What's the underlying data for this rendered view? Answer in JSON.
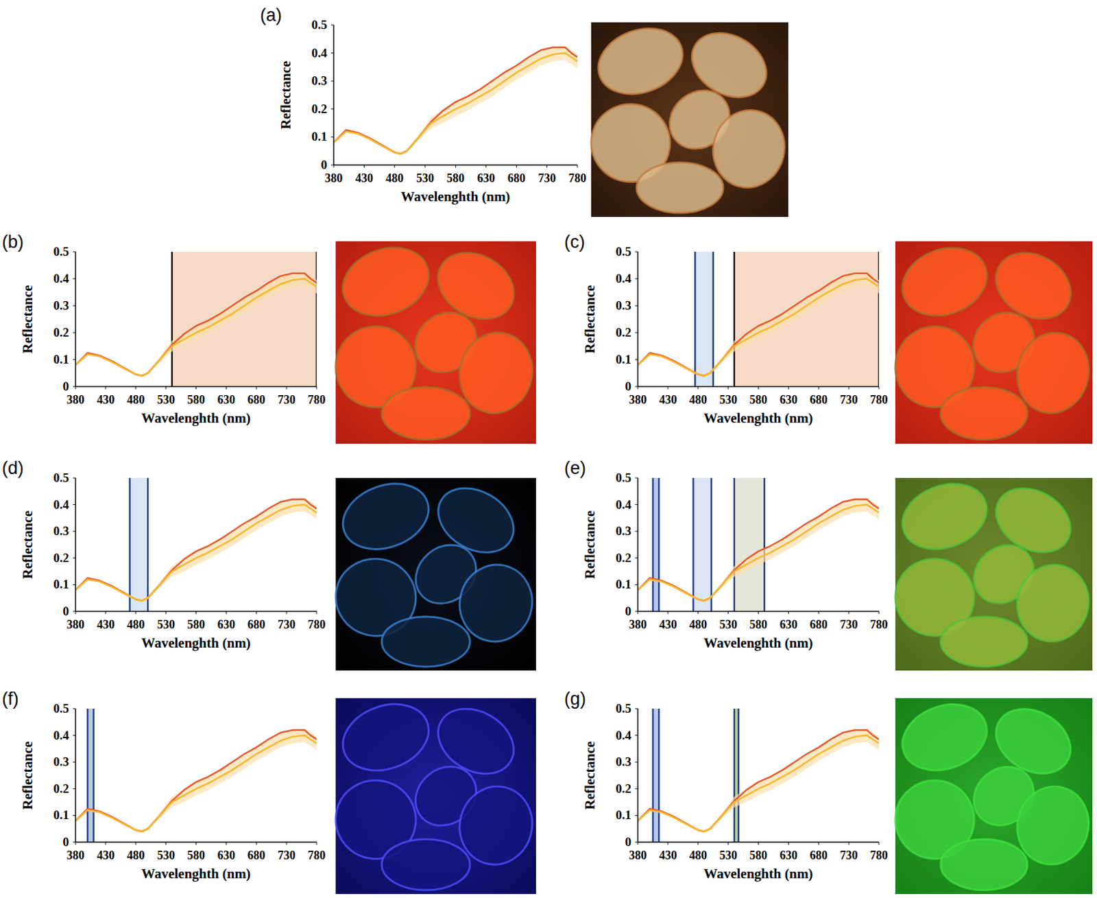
{
  "chart_data": [
    {
      "type": "line",
      "title": "(a)",
      "x_label": "Wavelenghth (nm)",
      "y_label": "Reflectance",
      "x": [
        380,
        400,
        420,
        440,
        460,
        480,
        490,
        500,
        520,
        540,
        560,
        580,
        600,
        620,
        640,
        660,
        680,
        700,
        720,
        740,
        760,
        770,
        780
      ],
      "series": [
        {
          "color": "#e8562a",
          "values": [
            0.08,
            0.125,
            0.115,
            0.095,
            0.07,
            0.045,
            0.04,
            0.05,
            0.1,
            0.155,
            0.195,
            0.225,
            0.245,
            0.27,
            0.3,
            0.33,
            0.355,
            0.385,
            0.41,
            0.42,
            0.42,
            0.4,
            0.385
          ]
        },
        {
          "color": "#f7b52c",
          "values": [
            0.08,
            0.12,
            0.112,
            0.092,
            0.068,
            0.045,
            0.04,
            0.05,
            0.1,
            0.15,
            0.175,
            0.2,
            0.22,
            0.245,
            0.27,
            0.3,
            0.33,
            0.355,
            0.38,
            0.395,
            0.4,
            0.385,
            0.37
          ],
          "error": [
            0.005,
            0.005,
            0.005,
            0.005,
            0.005,
            0.005,
            0.005,
            0.005,
            0.01,
            0.02,
            0.025,
            0.025,
            0.025,
            0.025,
            0.025,
            0.025,
            0.025,
            0.025,
            0.025,
            0.025,
            0.025,
            0.025,
            0.025
          ]
        }
      ],
      "bands": [],
      "xlim": [
        380,
        780
      ],
      "ylim": [
        0,
        0.5
      ],
      "xticks": [
        380,
        430,
        480,
        530,
        580,
        630,
        680,
        730,
        780
      ],
      "yticks": [
        0,
        0.1,
        0.2,
        0.3,
        0.4,
        0.5
      ]
    },
    {
      "type": "line",
      "title": "(b)",
      "x_label": "Wavelenghth (nm)",
      "y_label": "Reflectance",
      "x": [
        380,
        400,
        420,
        440,
        460,
        480,
        490,
        500,
        520,
        540,
        560,
        580,
        600,
        620,
        640,
        660,
        680,
        700,
        720,
        740,
        760,
        770,
        780
      ],
      "series": [
        {
          "color": "#e8562a",
          "values": [
            0.08,
            0.125,
            0.115,
            0.095,
            0.07,
            0.045,
            0.04,
            0.05,
            0.1,
            0.155,
            0.195,
            0.225,
            0.245,
            0.27,
            0.3,
            0.33,
            0.355,
            0.385,
            0.41,
            0.42,
            0.42,
            0.4,
            0.385
          ]
        },
        {
          "color": "#f7b52c",
          "values": [
            0.08,
            0.12,
            0.112,
            0.092,
            0.068,
            0.045,
            0.04,
            0.05,
            0.1,
            0.15,
            0.175,
            0.2,
            0.22,
            0.245,
            0.27,
            0.3,
            0.33,
            0.355,
            0.38,
            0.395,
            0.4,
            0.385,
            0.37
          ],
          "error": [
            0.005,
            0.005,
            0.005,
            0.005,
            0.005,
            0.005,
            0.005,
            0.005,
            0.01,
            0.02,
            0.025,
            0.025,
            0.025,
            0.025,
            0.025,
            0.025,
            0.025,
            0.025,
            0.025,
            0.025,
            0.025,
            0.025,
            0.025
          ]
        }
      ],
      "bands": [
        {
          "start": 540,
          "end": 780,
          "color": "#f3cdb4"
        }
      ],
      "xlim": [
        380,
        780
      ],
      "ylim": [
        0,
        0.5
      ],
      "xticks": [
        380,
        430,
        480,
        530,
        580,
        630,
        680,
        730,
        780
      ],
      "yticks": [
        0,
        0.1,
        0.2,
        0.3,
        0.4,
        0.5
      ]
    },
    {
      "type": "line",
      "title": "(c)",
      "x_label": "Wavelenghth (nm)",
      "y_label": "Reflectance",
      "x": [
        380,
        400,
        420,
        440,
        460,
        480,
        490,
        500,
        520,
        540,
        560,
        580,
        600,
        620,
        640,
        660,
        680,
        700,
        720,
        740,
        760,
        770,
        780
      ],
      "series": [
        {
          "color": "#e8562a",
          "values": [
            0.08,
            0.125,
            0.115,
            0.095,
            0.07,
            0.045,
            0.04,
            0.05,
            0.1,
            0.155,
            0.195,
            0.225,
            0.245,
            0.27,
            0.3,
            0.33,
            0.355,
            0.385,
            0.41,
            0.42,
            0.42,
            0.4,
            0.385
          ]
        },
        {
          "color": "#f7b52c",
          "values": [
            0.08,
            0.12,
            0.112,
            0.092,
            0.068,
            0.045,
            0.04,
            0.05,
            0.1,
            0.15,
            0.175,
            0.2,
            0.22,
            0.245,
            0.27,
            0.3,
            0.33,
            0.355,
            0.38,
            0.395,
            0.4,
            0.385,
            0.37
          ],
          "error": [
            0.005,
            0.005,
            0.005,
            0.005,
            0.005,
            0.005,
            0.005,
            0.005,
            0.01,
            0.02,
            0.025,
            0.025,
            0.025,
            0.025,
            0.025,
            0.025,
            0.025,
            0.025,
            0.025,
            0.025,
            0.025,
            0.025,
            0.025
          ]
        }
      ],
      "bands": [
        {
          "start": 475,
          "end": 505,
          "color": "#cfdcef"
        },
        {
          "start": 540,
          "end": 780,
          "color": "#f3cdb4"
        }
      ],
      "xlim": [
        380,
        780
      ],
      "ylim": [
        0,
        0.5
      ],
      "xticks": [
        380,
        430,
        480,
        530,
        580,
        630,
        680,
        730,
        780
      ],
      "yticks": [
        0,
        0.1,
        0.2,
        0.3,
        0.4,
        0.5
      ]
    },
    {
      "type": "line",
      "title": "(d)",
      "x_label": "Wavelenghth (nm)",
      "y_label": "Reflectance",
      "x": [
        380,
        400,
        420,
        440,
        460,
        480,
        490,
        500,
        520,
        540,
        560,
        580,
        600,
        620,
        640,
        660,
        680,
        700,
        720,
        740,
        760,
        770,
        780
      ],
      "series": [
        {
          "color": "#e8562a",
          "values": [
            0.08,
            0.125,
            0.115,
            0.095,
            0.07,
            0.045,
            0.04,
            0.05,
            0.1,
            0.155,
            0.195,
            0.225,
            0.245,
            0.27,
            0.3,
            0.33,
            0.355,
            0.385,
            0.41,
            0.42,
            0.42,
            0.4,
            0.385
          ]
        },
        {
          "color": "#f7b52c",
          "values": [
            0.08,
            0.12,
            0.112,
            0.092,
            0.068,
            0.045,
            0.04,
            0.05,
            0.1,
            0.15,
            0.175,
            0.2,
            0.22,
            0.245,
            0.27,
            0.3,
            0.33,
            0.355,
            0.38,
            0.395,
            0.4,
            0.385,
            0.37
          ],
          "error": [
            0.005,
            0.005,
            0.005,
            0.005,
            0.005,
            0.005,
            0.005,
            0.005,
            0.01,
            0.02,
            0.025,
            0.025,
            0.025,
            0.025,
            0.025,
            0.025,
            0.025,
            0.025,
            0.025,
            0.025,
            0.025,
            0.025,
            0.025
          ]
        }
      ],
      "bands": [
        {
          "start": 470,
          "end": 500,
          "color": "#cfdcef"
        }
      ],
      "xlim": [
        380,
        780
      ],
      "ylim": [
        0,
        0.5
      ],
      "xticks": [
        380,
        430,
        480,
        530,
        580,
        630,
        680,
        730,
        780
      ],
      "yticks": [
        0,
        0.1,
        0.2,
        0.3,
        0.4,
        0.5
      ]
    },
    {
      "type": "line",
      "title": "(e)",
      "x_label": "Wavelenghth (nm)",
      "y_label": "Reflectance",
      "x": [
        380,
        400,
        420,
        440,
        460,
        480,
        490,
        500,
        520,
        540,
        560,
        580,
        600,
        620,
        640,
        660,
        680,
        700,
        720,
        740,
        760,
        770,
        780
      ],
      "series": [
        {
          "color": "#e8562a",
          "values": [
            0.08,
            0.125,
            0.115,
            0.095,
            0.07,
            0.045,
            0.04,
            0.05,
            0.1,
            0.155,
            0.195,
            0.225,
            0.245,
            0.27,
            0.3,
            0.33,
            0.355,
            0.385,
            0.41,
            0.42,
            0.42,
            0.4,
            0.385
          ]
        },
        {
          "color": "#f7b52c",
          "values": [
            0.08,
            0.12,
            0.112,
            0.092,
            0.068,
            0.045,
            0.04,
            0.05,
            0.1,
            0.15,
            0.175,
            0.2,
            0.22,
            0.245,
            0.27,
            0.3,
            0.33,
            0.355,
            0.38,
            0.395,
            0.4,
            0.385,
            0.37
          ],
          "error": [
            0.005,
            0.005,
            0.005,
            0.005,
            0.005,
            0.005,
            0.005,
            0.005,
            0.01,
            0.02,
            0.025,
            0.025,
            0.025,
            0.025,
            0.025,
            0.025,
            0.025,
            0.025,
            0.025,
            0.025,
            0.025,
            0.025,
            0.025
          ]
        }
      ],
      "bands": [
        {
          "start": 405,
          "end": 415,
          "color": "#9fb8e0"
        },
        {
          "start": 472,
          "end": 502,
          "color": "#cfdcef"
        },
        {
          "start": 540,
          "end": 590,
          "color": "#d9dccb"
        }
      ],
      "xlim": [
        380,
        780
      ],
      "ylim": [
        0,
        0.5
      ],
      "xticks": [
        380,
        430,
        480,
        530,
        580,
        630,
        680,
        730,
        780
      ],
      "yticks": [
        0,
        0.1,
        0.2,
        0.3,
        0.4,
        0.5
      ]
    },
    {
      "type": "line",
      "title": "(f)",
      "x_label": "Wavelenghth (nm)",
      "y_label": "Reflectance",
      "x": [
        380,
        400,
        420,
        440,
        460,
        480,
        490,
        500,
        520,
        540,
        560,
        580,
        600,
        620,
        640,
        660,
        680,
        700,
        720,
        740,
        760,
        770,
        780
      ],
      "series": [
        {
          "color": "#e8562a",
          "values": [
            0.08,
            0.125,
            0.115,
            0.095,
            0.07,
            0.045,
            0.04,
            0.05,
            0.1,
            0.155,
            0.195,
            0.225,
            0.245,
            0.27,
            0.3,
            0.33,
            0.355,
            0.385,
            0.41,
            0.42,
            0.42,
            0.4,
            0.385
          ]
        },
        {
          "color": "#f7b52c",
          "values": [
            0.08,
            0.12,
            0.112,
            0.092,
            0.068,
            0.045,
            0.04,
            0.05,
            0.1,
            0.15,
            0.175,
            0.2,
            0.22,
            0.245,
            0.27,
            0.3,
            0.33,
            0.355,
            0.38,
            0.395,
            0.4,
            0.385,
            0.37
          ],
          "error": [
            0.005,
            0.005,
            0.005,
            0.005,
            0.005,
            0.005,
            0.005,
            0.005,
            0.01,
            0.02,
            0.025,
            0.025,
            0.025,
            0.025,
            0.025,
            0.025,
            0.025,
            0.025,
            0.025,
            0.025,
            0.025,
            0.025,
            0.025
          ]
        }
      ],
      "bands": [
        {
          "start": 400,
          "end": 410,
          "color": "#9fb8e0"
        }
      ],
      "xlim": [
        380,
        780
      ],
      "ylim": [
        0,
        0.5
      ],
      "xticks": [
        380,
        430,
        480,
        530,
        580,
        630,
        680,
        730,
        780
      ],
      "yticks": [
        0,
        0.1,
        0.2,
        0.3,
        0.4,
        0.5
      ]
    },
    {
      "type": "line",
      "title": "(g)",
      "x_label": "Wavelenghth (nm)",
      "y_label": "Reflectance",
      "x": [
        380,
        400,
        420,
        440,
        460,
        480,
        490,
        500,
        520,
        540,
        560,
        580,
        600,
        620,
        640,
        660,
        680,
        700,
        720,
        740,
        760,
        770,
        780
      ],
      "series": [
        {
          "color": "#e8562a",
          "values": [
            0.08,
            0.125,
            0.115,
            0.095,
            0.07,
            0.045,
            0.04,
            0.05,
            0.1,
            0.155,
            0.195,
            0.225,
            0.245,
            0.27,
            0.3,
            0.33,
            0.355,
            0.385,
            0.41,
            0.42,
            0.42,
            0.4,
            0.385
          ]
        },
        {
          "color": "#f7b52c",
          "values": [
            0.08,
            0.12,
            0.112,
            0.092,
            0.068,
            0.045,
            0.04,
            0.05,
            0.1,
            0.15,
            0.175,
            0.2,
            0.22,
            0.245,
            0.27,
            0.3,
            0.33,
            0.355,
            0.38,
            0.395,
            0.4,
            0.385,
            0.37
          ],
          "error": [
            0.005,
            0.005,
            0.005,
            0.005,
            0.005,
            0.005,
            0.005,
            0.005,
            0.01,
            0.02,
            0.025,
            0.025,
            0.025,
            0.025,
            0.025,
            0.025,
            0.025,
            0.025,
            0.025,
            0.025,
            0.025,
            0.025,
            0.025
          ]
        }
      ],
      "bands": [
        {
          "start": 405,
          "end": 415,
          "color": "#9fb8e0"
        },
        {
          "start": 540,
          "end": 547,
          "color": "#9fc070"
        }
      ],
      "xlim": [
        380,
        780
      ],
      "ylim": [
        0,
        0.5
      ],
      "xticks": [
        380,
        430,
        480,
        530,
        580,
        630,
        680,
        730,
        780
      ],
      "yticks": [
        0,
        0.1,
        0.2,
        0.3,
        0.4,
        0.5
      ]
    }
  ]
}
